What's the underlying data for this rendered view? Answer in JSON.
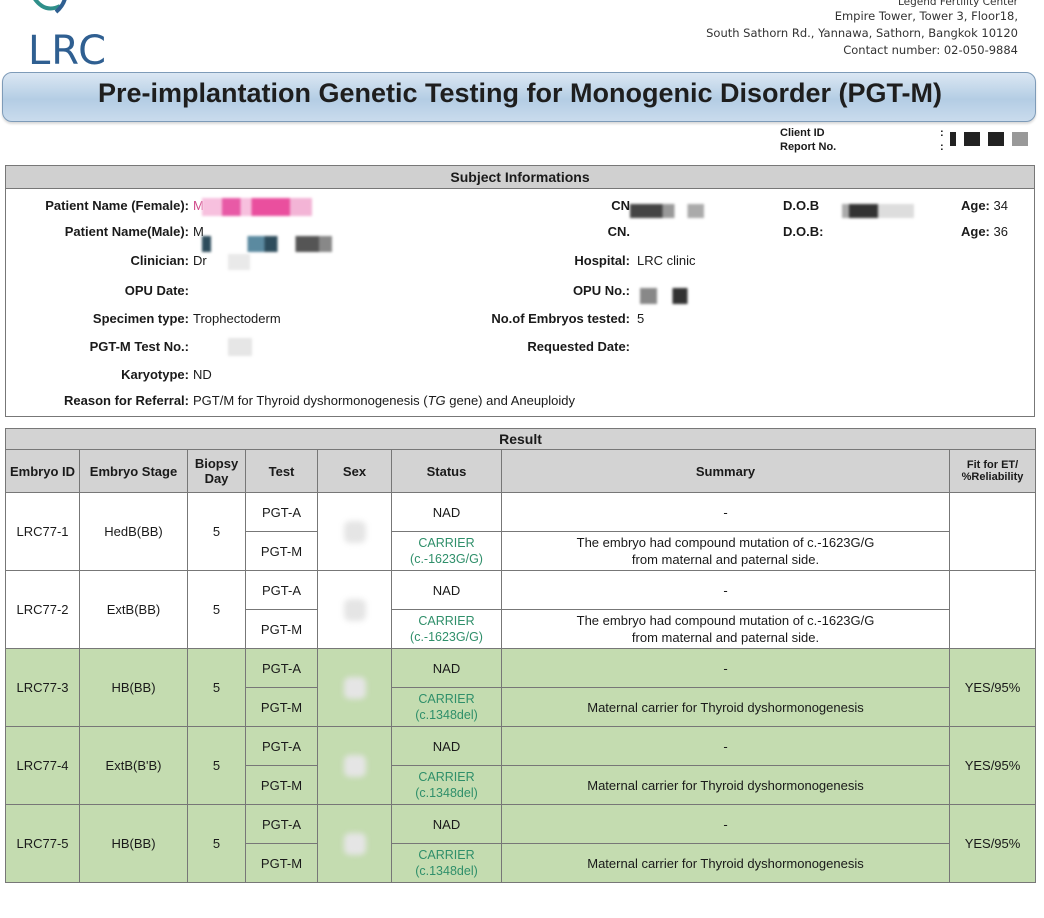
{
  "header": {
    "logo_text": "LRC",
    "center_name": "Legend Fertility Center",
    "address1": "Empire Tower, Tower 3, Floor18,",
    "address2": "South Sathorn Rd., Yannawa, Sathorn, Bangkok 10120",
    "contact": "Contact number: 02-050-9884",
    "title": "Pre-implantation Genetic Testing for Monogenic Disorder (PGT-M)",
    "client_id_label": "Client ID",
    "report_no_label": "Report No."
  },
  "subject": {
    "heading": "Subject Informations",
    "female_label": "Patient Name (Female):",
    "female_value": "M",
    "male_label": "Patient Name(Male):",
    "male_value": "M",
    "clinician_label": "Clinician:",
    "clinician_value": "Dr",
    "opu_date_label": "OPU Date:",
    "specimen_label": "Specimen type:",
    "specimen_value": "Trophectoderm",
    "testno_label": "PGT-M Test No.:",
    "karyotype_label": "Karyotype:",
    "karyotype_value": "ND",
    "reason_label": "Reason for Referral:",
    "reason_pre": "PGT/M for Thyroid dyshormonogenesis (",
    "reason_gene": "TG",
    "reason_post": " gene) and Aneuploidy",
    "cn1_label": "CN",
    "cn2_label": "CN.",
    "hospital_label": "Hospital:",
    "hospital_value": "LRC clinic",
    "opu_no_label": "OPU No.:",
    "embryos_label": "No.of Embryos tested:",
    "embryos_value": "5",
    "requested_label": "Requested Date:",
    "dob1_label": "D.O.B",
    "dob2_label": "D.O.B:",
    "age_label": "Age:",
    "age_female": "34",
    "age_male": "36"
  },
  "result": {
    "heading": "Result",
    "columns": {
      "embryo_id": "Embryo ID",
      "stage": "Embryo Stage",
      "day": "Biopsy Day",
      "test": "Test",
      "sex": "Sex",
      "status": "Status",
      "summary": "Summary",
      "fit_a": "Fit for ET/",
      "fit_b": "%Reliability"
    },
    "embryos": [
      {
        "id": "LRC77-1",
        "stage": "HedB(BB)",
        "day": "5",
        "fit": "",
        "highlight": false,
        "a_test": "PGT-A",
        "a_status": "NAD",
        "a_summary": "-",
        "m_test": "PGT-M",
        "m_status1": "CARRIER",
        "m_status2": "(c.-1623G/G)",
        "m_summary1": "The embryo had compound mutation of c.-1623G/G",
        "m_summary2": "from maternal and paternal side."
      },
      {
        "id": "LRC77-2",
        "stage": "ExtB(BB)",
        "day": "5",
        "fit": "",
        "highlight": false,
        "a_test": "PGT-A",
        "a_status": "NAD",
        "a_summary": "-",
        "m_test": "PGT-M",
        "m_status1": "CARRIER",
        "m_status2": "(c.-1623G/G)",
        "m_summary1": "The embryo had compound mutation of c.-1623G/G",
        "m_summary2": "from maternal and paternal side."
      },
      {
        "id": "LRC77-3",
        "stage": "HB(BB)",
        "day": "5",
        "fit": "YES/95%",
        "highlight": true,
        "a_test": "PGT-A",
        "a_status": "NAD",
        "a_summary": "-",
        "m_test": "PGT-M",
        "m_status1": "CARRIER",
        "m_status2": "(c.1348del)",
        "m_summary1": "Maternal carrier for Thyroid dyshormonogenesis",
        "m_summary2": ""
      },
      {
        "id": "LRC77-4",
        "stage": "ExtB(B'B)",
        "day": "5",
        "fit": "YES/95%",
        "highlight": true,
        "a_test": "PGT-A",
        "a_status": "NAD",
        "a_summary": "-",
        "m_test": "PGT-M",
        "m_status1": "CARRIER",
        "m_status2": "(c.1348del)",
        "m_summary1": "Maternal carrier for Thyroid dyshormonogenesis",
        "m_summary2": ""
      },
      {
        "id": "LRC77-5",
        "stage": "HB(BB)",
        "day": "5",
        "fit": "YES/95%",
        "highlight": true,
        "a_test": "PGT-A",
        "a_status": "NAD",
        "a_summary": "-",
        "m_test": "PGT-M",
        "m_status1": "CARRIER",
        "m_status2": "(c.1348del)",
        "m_summary1": "Maternal carrier for Thyroid dyshormonogenesis",
        "m_summary2": ""
      }
    ]
  }
}
